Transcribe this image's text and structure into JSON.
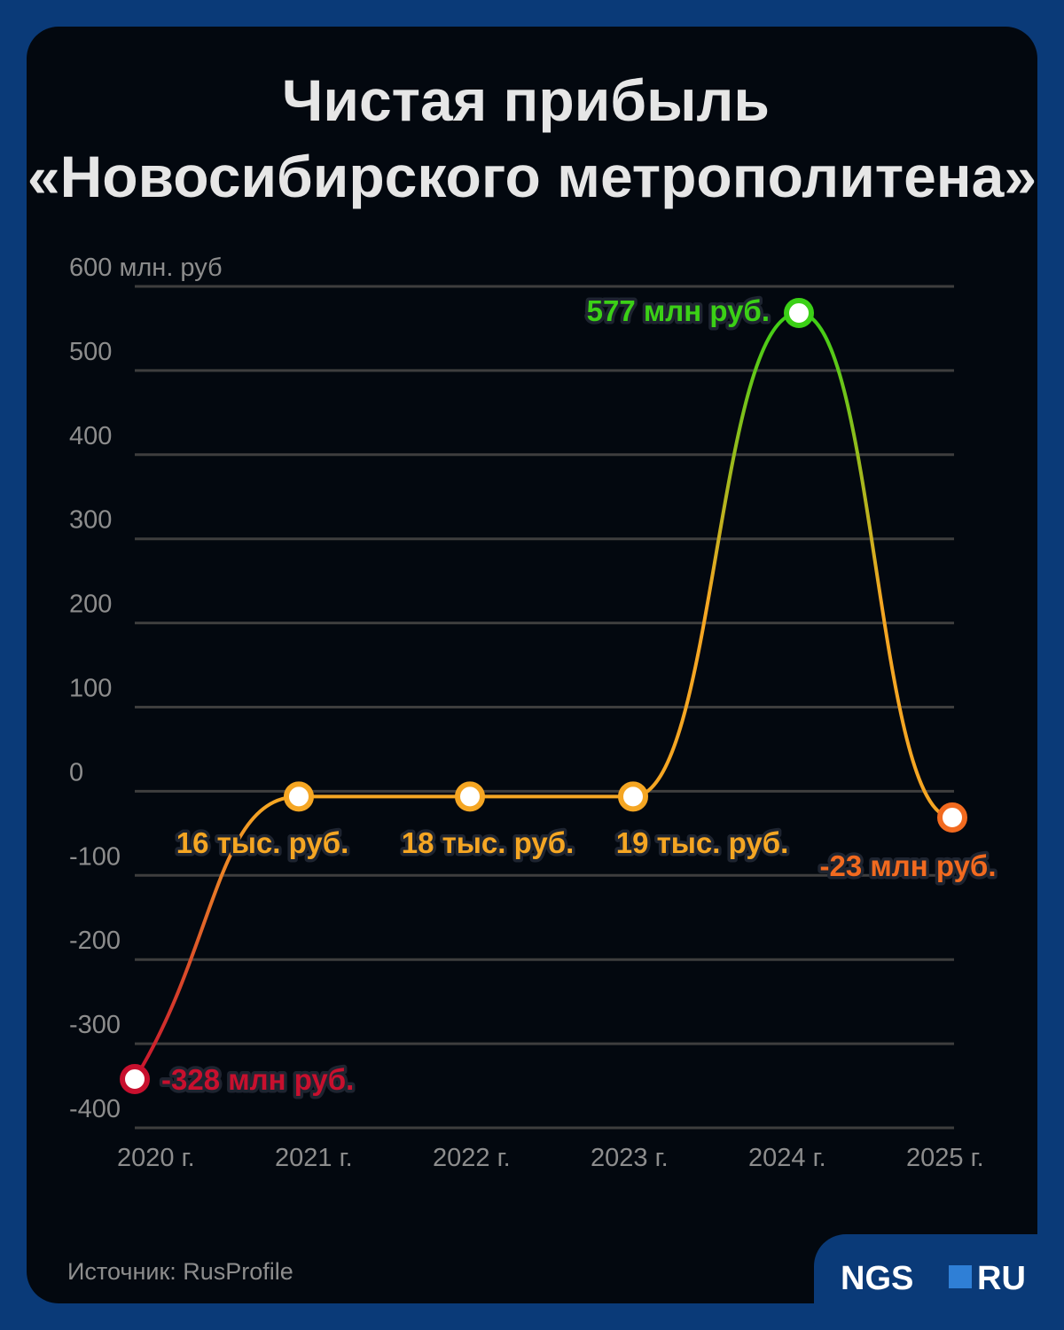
{
  "colors": {
    "background": "#0a3a78",
    "card": "#03080f",
    "grid": "#3e3e3e",
    "negative": "#c8102e",
    "small_positive": "#f5a623",
    "negative_small": "#f26a1f",
    "peak": "#3bd016"
  },
  "title": {
    "line1": "Чистая прибыль",
    "line2": "«Новосибирского метрополитена»"
  },
  "source": "Источник: RusProfile",
  "logo": {
    "left": "NGS",
    "right": "RU",
    "icon": "square-icon"
  },
  "chart_data": {
    "type": "line",
    "title": "Чистая прибыль «Новосибирского метрополитена»",
    "ylabel": "600 млн. руб",
    "ylim": [
      -400,
      600
    ],
    "y_ticks": [
      -400,
      -300,
      -200,
      -100,
      0,
      100,
      200,
      300,
      400,
      500,
      600
    ],
    "y_tick_labels": [
      "-400",
      "-300",
      "-200",
      "-100",
      "0",
      "100",
      "200",
      "300",
      "400",
      "500",
      "600 млн. руб"
    ],
    "categories": [
      "2020 г.",
      "2021 г.",
      "2022 г.",
      "2023 г.",
      "2024 г.",
      "2025 г."
    ],
    "values": [
      -328,
      0.016,
      0.018,
      0.019,
      577,
      -23
    ],
    "data_labels": [
      "-328 млн руб.",
      "16 тыс. руб.",
      "18 тыс. руб.",
      "19 тыс. руб.",
      "577 млн руб.",
      "-23 млн руб."
    ],
    "point_colors": [
      "#c8102e",
      "#f5a623",
      "#f5a623",
      "#f5a623",
      "#3bd016",
      "#f26a1f"
    ],
    "grid": true,
    "smooth": true
  }
}
